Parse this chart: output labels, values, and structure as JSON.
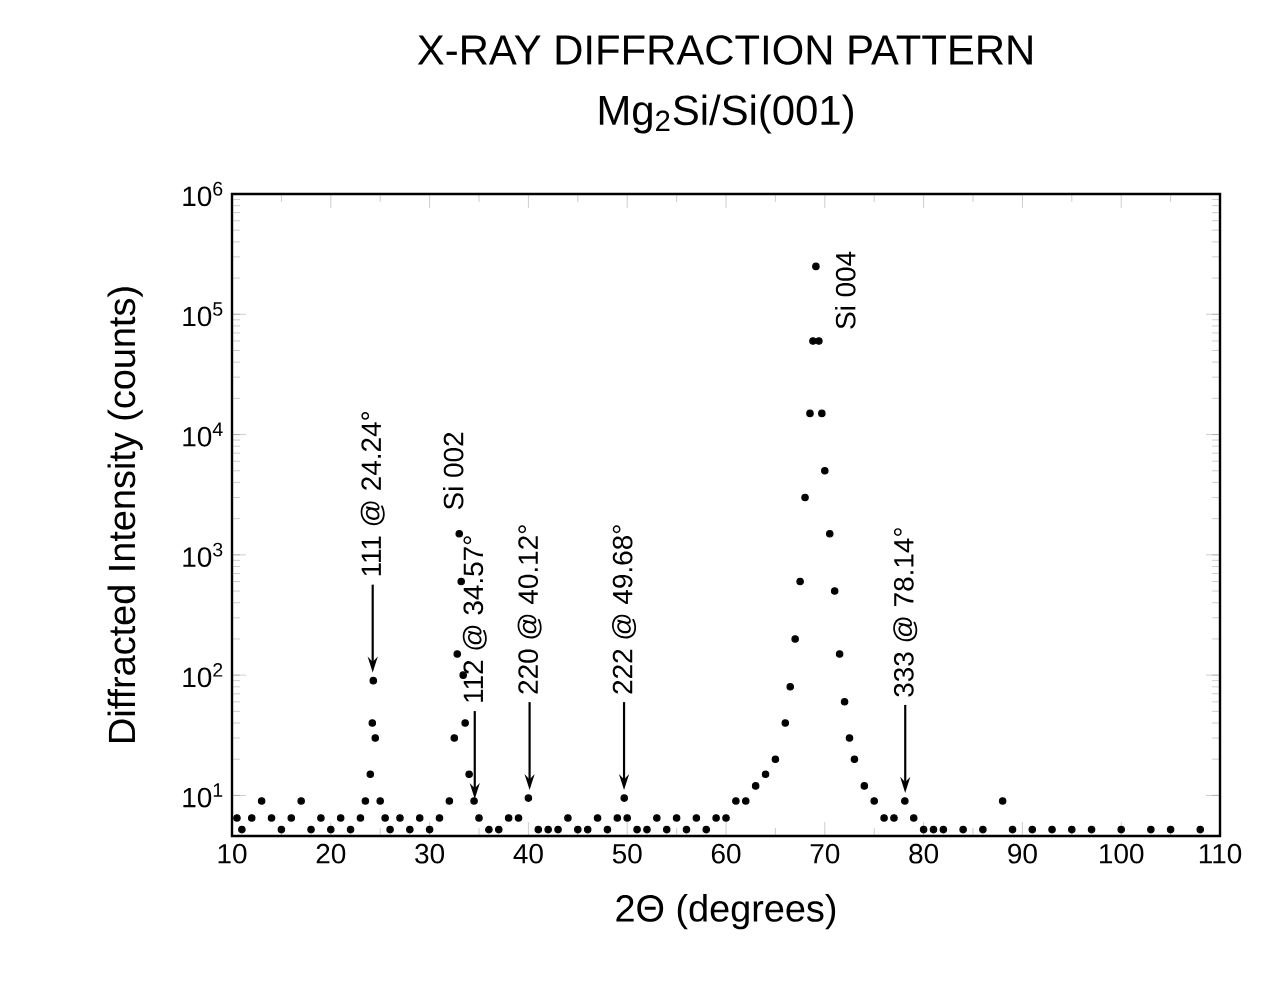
{
  "chart_data": {
    "type": "scatter",
    "title": "X-RAY DIFFRACTION PATTERN",
    "subtitle": "Mg$_{2}$Si/Si(001)",
    "xlabel": "2Θ (degrees)",
    "ylabel": "Diffracted Intensity (counts)",
    "x": [
      10.5,
      11,
      12,
      13,
      14,
      15,
      16,
      17,
      18,
      19,
      20,
      21,
      22,
      23,
      23.5,
      24,
      24.2,
      24.3,
      24.5,
      25,
      25.5,
      26,
      27,
      28,
      29,
      30,
      31,
      32,
      32.5,
      32.8,
      33,
      33.2,
      33.4,
      33.6,
      34,
      34.5,
      35,
      36,
      37,
      38,
      39,
      40,
      41,
      42,
      43,
      44,
      45,
      46,
      47,
      48,
      49,
      49.7,
      50,
      51,
      52,
      53,
      54,
      55,
      56,
      57,
      58,
      59,
      60,
      61,
      62,
      63,
      64,
      65,
      66,
      66.5,
      67,
      67.5,
      68,
      68.5,
      68.8,
      69.1,
      69.4,
      69.7,
      70,
      70.5,
      71,
      71.5,
      72,
      72.5,
      73,
      74,
      75,
      76,
      77,
      78.1,
      79,
      80,
      81,
      82,
      84,
      86,
      88,
      89,
      91,
      93,
      95,
      97,
      100,
      103,
      105,
      108
    ],
    "values": [
      6.5,
      5.2,
      6.5,
      9,
      6.5,
      5.2,
      6.5,
      9,
      5.2,
      6.5,
      5.2,
      6.5,
      5.2,
      6.5,
      9,
      15,
      40,
      90,
      30,
      9,
      6.5,
      5.2,
      6.5,
      5.2,
      6.5,
      5.2,
      6.5,
      9,
      30,
      150,
      1500,
      600,
      100,
      40,
      15,
      9,
      6.5,
      5.2,
      5.2,
      6.5,
      6.5,
      9.5,
      5.2,
      5.2,
      5.2,
      6.5,
      5.2,
      5.2,
      6.5,
      5.2,
      6.5,
      9.5,
      6.5,
      5.2,
      5.2,
      6.5,
      5.2,
      6.5,
      5.2,
      6.5,
      5.2,
      6.5,
      6.5,
      9,
      9,
      12,
      15,
      20,
      40,
      80,
      200,
      600,
      3000,
      15000,
      60000,
      250000,
      60000,
      15000,
      5000,
      1500,
      500,
      150,
      60,
      30,
      20,
      12,
      9,
      6.5,
      6.5,
      9,
      6.5,
      5.2,
      5.2,
      5.2,
      5.2,
      5.2,
      9,
      5.2,
      5.2,
      5.2,
      5.2,
      5.2,
      5.2,
      5.2,
      5.2,
      5.2
    ],
    "color": "#000000",
    "marker": "circle",
    "log": "y",
    "grid": false,
    "xlim": [
      10,
      110
    ],
    "ylim": [
      4.6,
      1000000
    ],
    "xticks": [
      10,
      20,
      30,
      40,
      50,
      60,
      70,
      80,
      90,
      100,
      110
    ],
    "yticks": [
      {
        "value": 10,
        "label": "10$^{1}$"
      },
      {
        "value": 100,
        "label": "10$^{2}$"
      },
      {
        "value": 1000,
        "label": "10$^{3}$"
      },
      {
        "value": 10000,
        "label": "10$^{4}$"
      },
      {
        "value": 100000,
        "label": "10$^{5}$"
      },
      {
        "value": 1000000,
        "label": "10$^{6}$"
      }
    ],
    "annotations": [
      {
        "text": "111 @ 24.24°",
        "x": 24.24,
        "y": 90
      },
      {
        "text": "Si 002",
        "x": 33,
        "y": 1500
      },
      {
        "text": "112 @ 34.57°",
        "x": 34.57,
        "y": 8
      },
      {
        "text": "220 @ 40.12°",
        "x": 40.12,
        "y": 9.5
      },
      {
        "text": "222 @ 49.68°",
        "x": 49.68,
        "y": 9.5
      },
      {
        "text": "Si 004",
        "x": 69.1,
        "y": 250000
      },
      {
        "text": "333 @ 78.14°",
        "x": 78.14,
        "y": 9
      }
    ]
  }
}
